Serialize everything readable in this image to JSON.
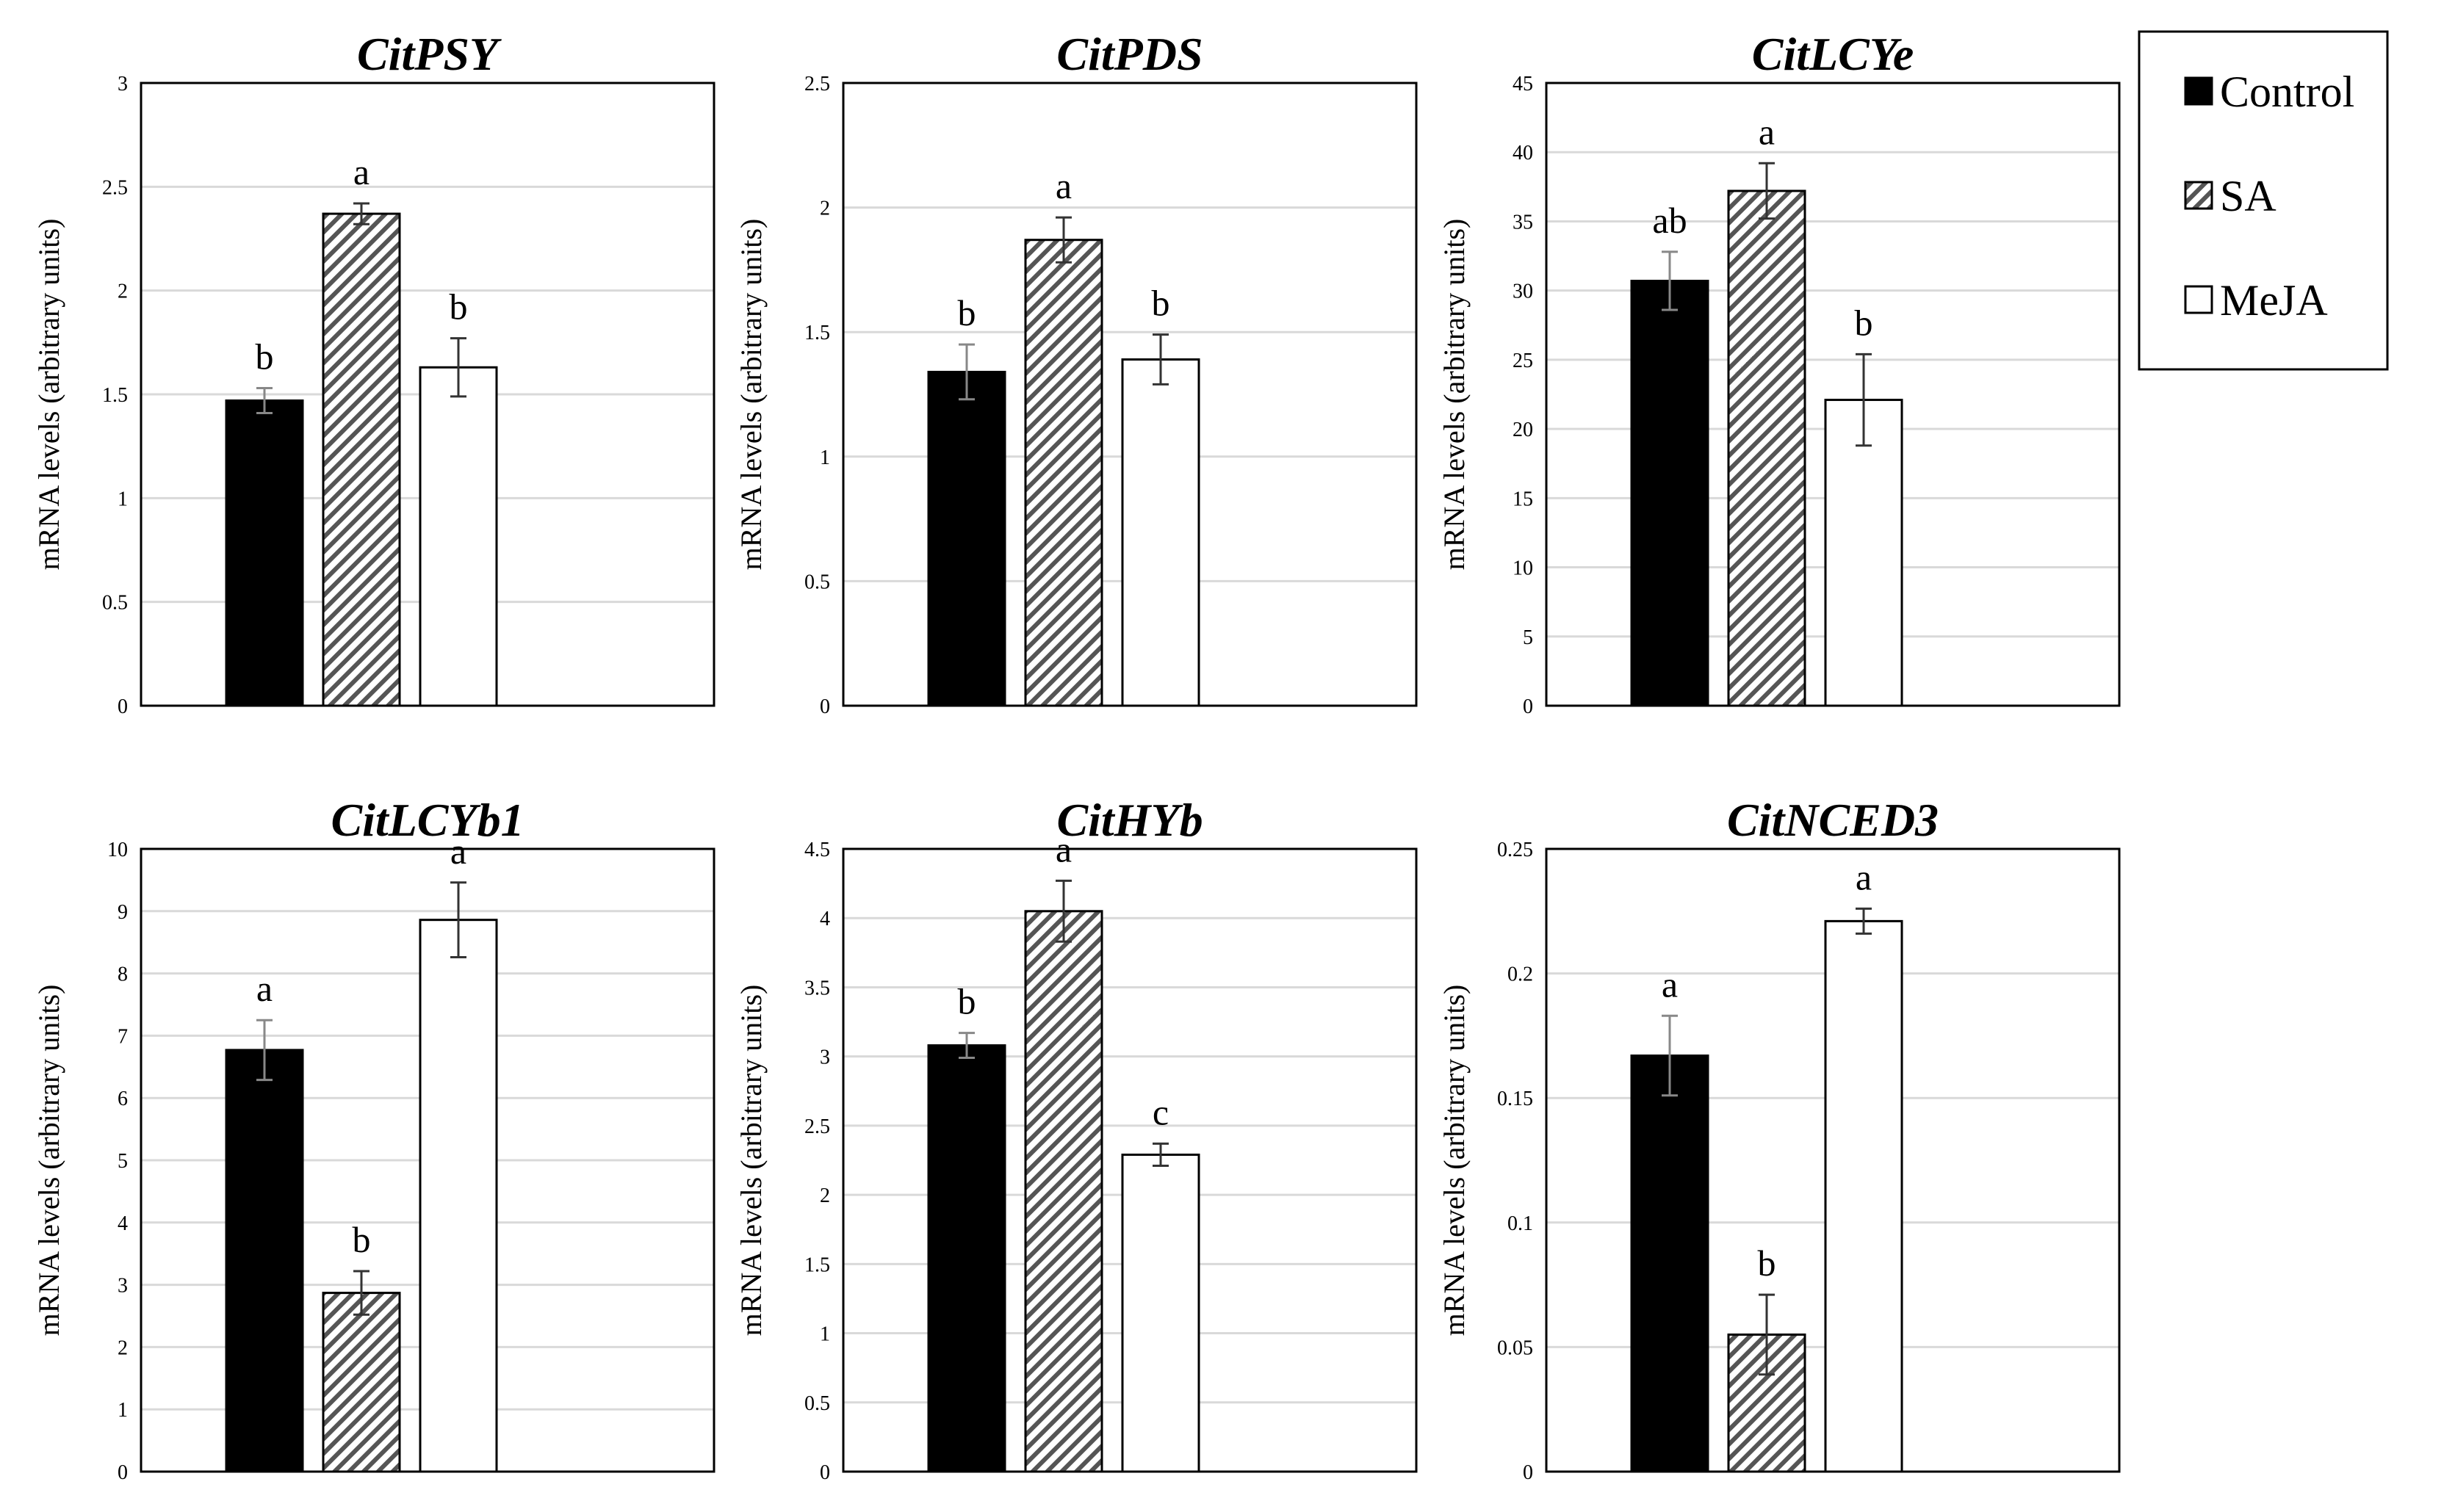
{
  "chart_data": {
    "type": "bar",
    "legend": {
      "position": "top-right",
      "entries": [
        {
          "name": "Control",
          "fill": "solid",
          "color": "#000000"
        },
        {
          "name": "SA",
          "fill": "hatched",
          "color": "#555555"
        },
        {
          "name": "MeJA",
          "fill": "open",
          "color": "#ffffff"
        }
      ]
    },
    "categories": [
      "Control",
      "SA",
      "MeJA"
    ],
    "panels": [
      {
        "title": "CitPSY",
        "ylabel": "mRNA levels (arbitrary units)",
        "ylim": [
          0,
          3
        ],
        "ticks": [
          "0",
          "0.5",
          "1",
          "1.5",
          "2",
          "2.5",
          "3"
        ],
        "grid": true,
        "series": [
          {
            "name": "Control",
            "value": 1.47,
            "error": 0.06,
            "sig": "b"
          },
          {
            "name": "SA",
            "value": 2.37,
            "error": 0.05,
            "sig": "a"
          },
          {
            "name": "MeJA",
            "value": 1.63,
            "error": 0.14,
            "sig": "b"
          }
        ]
      },
      {
        "title": "CitPDS",
        "ylabel": "mRNA levels (arbitrary units)",
        "ylim": [
          0,
          2.5
        ],
        "ticks": [
          "0",
          "0.5",
          "1",
          "1.5",
          "2",
          "2.5"
        ],
        "grid": true,
        "series": [
          {
            "name": "Control",
            "value": 1.34,
            "error": 0.11,
            "sig": "b"
          },
          {
            "name": "SA",
            "value": 1.87,
            "error": 0.09,
            "sig": "a"
          },
          {
            "name": "MeJA",
            "value": 1.39,
            "error": 0.1,
            "sig": "b"
          }
        ]
      },
      {
        "title": "CitLCYe",
        "ylabel": "mRNA levels (arbitrary units)",
        "ylim": [
          0,
          45
        ],
        "ticks": [
          "0",
          "5",
          "10",
          "15",
          "20",
          "25",
          "30",
          "35",
          "40",
          "45"
        ],
        "grid": true,
        "series": [
          {
            "name": "Control",
            "value": 30.7,
            "error": 2.1,
            "sig": "ab"
          },
          {
            "name": "SA",
            "value": 37.2,
            "error": 2.0,
            "sig": "a"
          },
          {
            "name": "MeJA",
            "value": 22.1,
            "error": 3.3,
            "sig": "b"
          }
        ]
      },
      {
        "title": "CitLCYb1",
        "ylabel": "mRNA levels (arbitrary units)",
        "ylim": [
          0,
          10
        ],
        "ticks": [
          "0",
          "1",
          "2",
          "3",
          "4",
          "5",
          "6",
          "7",
          "8",
          "9",
          "10"
        ],
        "grid": true,
        "series": [
          {
            "name": "Control",
            "value": 6.77,
            "error": 0.48,
            "sig": "a"
          },
          {
            "name": "SA",
            "value": 2.87,
            "error": 0.35,
            "sig": "b"
          },
          {
            "name": "MeJA",
            "value": 8.86,
            "error": 0.6,
            "sig": "a"
          }
        ]
      },
      {
        "title": "CitHYb",
        "ylabel": "mRNA levels (arbitrary units)",
        "ylim": [
          0,
          4.5
        ],
        "ticks": [
          "0",
          "0.5",
          "1",
          "1.5",
          "2",
          "2.5",
          "3",
          "3.5",
          "4",
          "4.5"
        ],
        "grid": true,
        "series": [
          {
            "name": "Control",
            "value": 3.08,
            "error": 0.09,
            "sig": "b"
          },
          {
            "name": "SA",
            "value": 4.05,
            "error": 0.22,
            "sig": "a"
          },
          {
            "name": "MeJA",
            "value": 2.29,
            "error": 0.08,
            "sig": "c"
          }
        ]
      },
      {
        "title": "CitNCED3",
        "ylabel": "mRNA levels (arbitrary units)",
        "ylim": [
          0,
          0.25
        ],
        "ticks": [
          "0",
          "0.05",
          "0.1",
          "0.15",
          "0.2",
          "0.25"
        ],
        "grid": true,
        "series": [
          {
            "name": "Control",
            "value": 0.167,
            "error": 0.016,
            "sig": "a"
          },
          {
            "name": "SA",
            "value": 0.055,
            "error": 0.016,
            "sig": "b"
          },
          {
            "name": "MeJA",
            "value": 0.221,
            "error": 0.005,
            "sig": "a"
          }
        ]
      }
    ]
  }
}
